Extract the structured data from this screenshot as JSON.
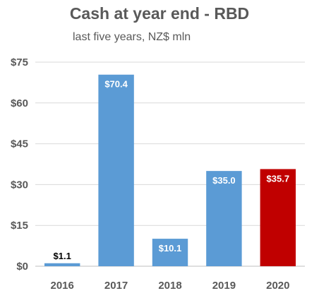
{
  "chart_data": {
    "type": "bar",
    "title": "Cash at year end - RBD",
    "subtitle": "last five years, NZ$ mln",
    "categories": [
      "2016",
      "2017",
      "2018",
      "2019",
      "2020"
    ],
    "values": [
      1.1,
      70.4,
      10.1,
      35.0,
      35.7
    ],
    "data_labels": [
      "$1.1",
      "$70.4",
      "$10.1",
      "$35.0",
      "$35.7"
    ],
    "ylim": [
      0,
      75
    ],
    "yticks": [
      0,
      15,
      30,
      45,
      60,
      75
    ],
    "ytick_labels": [
      "$0",
      "$15",
      "$30",
      "$45",
      "$60",
      "$75"
    ],
    "grid": true,
    "bar_colors": [
      "#5b9bd5",
      "#5b9bd5",
      "#5b9bd5",
      "#5b9bd5",
      "#c00000"
    ],
    "label_colors": [
      "#000000",
      "#ffffff",
      "#ffffff",
      "#ffffff",
      "#ffffff"
    ],
    "gridline_color": "#d9d9d9",
    "axis_color": "#bfbfbf"
  }
}
